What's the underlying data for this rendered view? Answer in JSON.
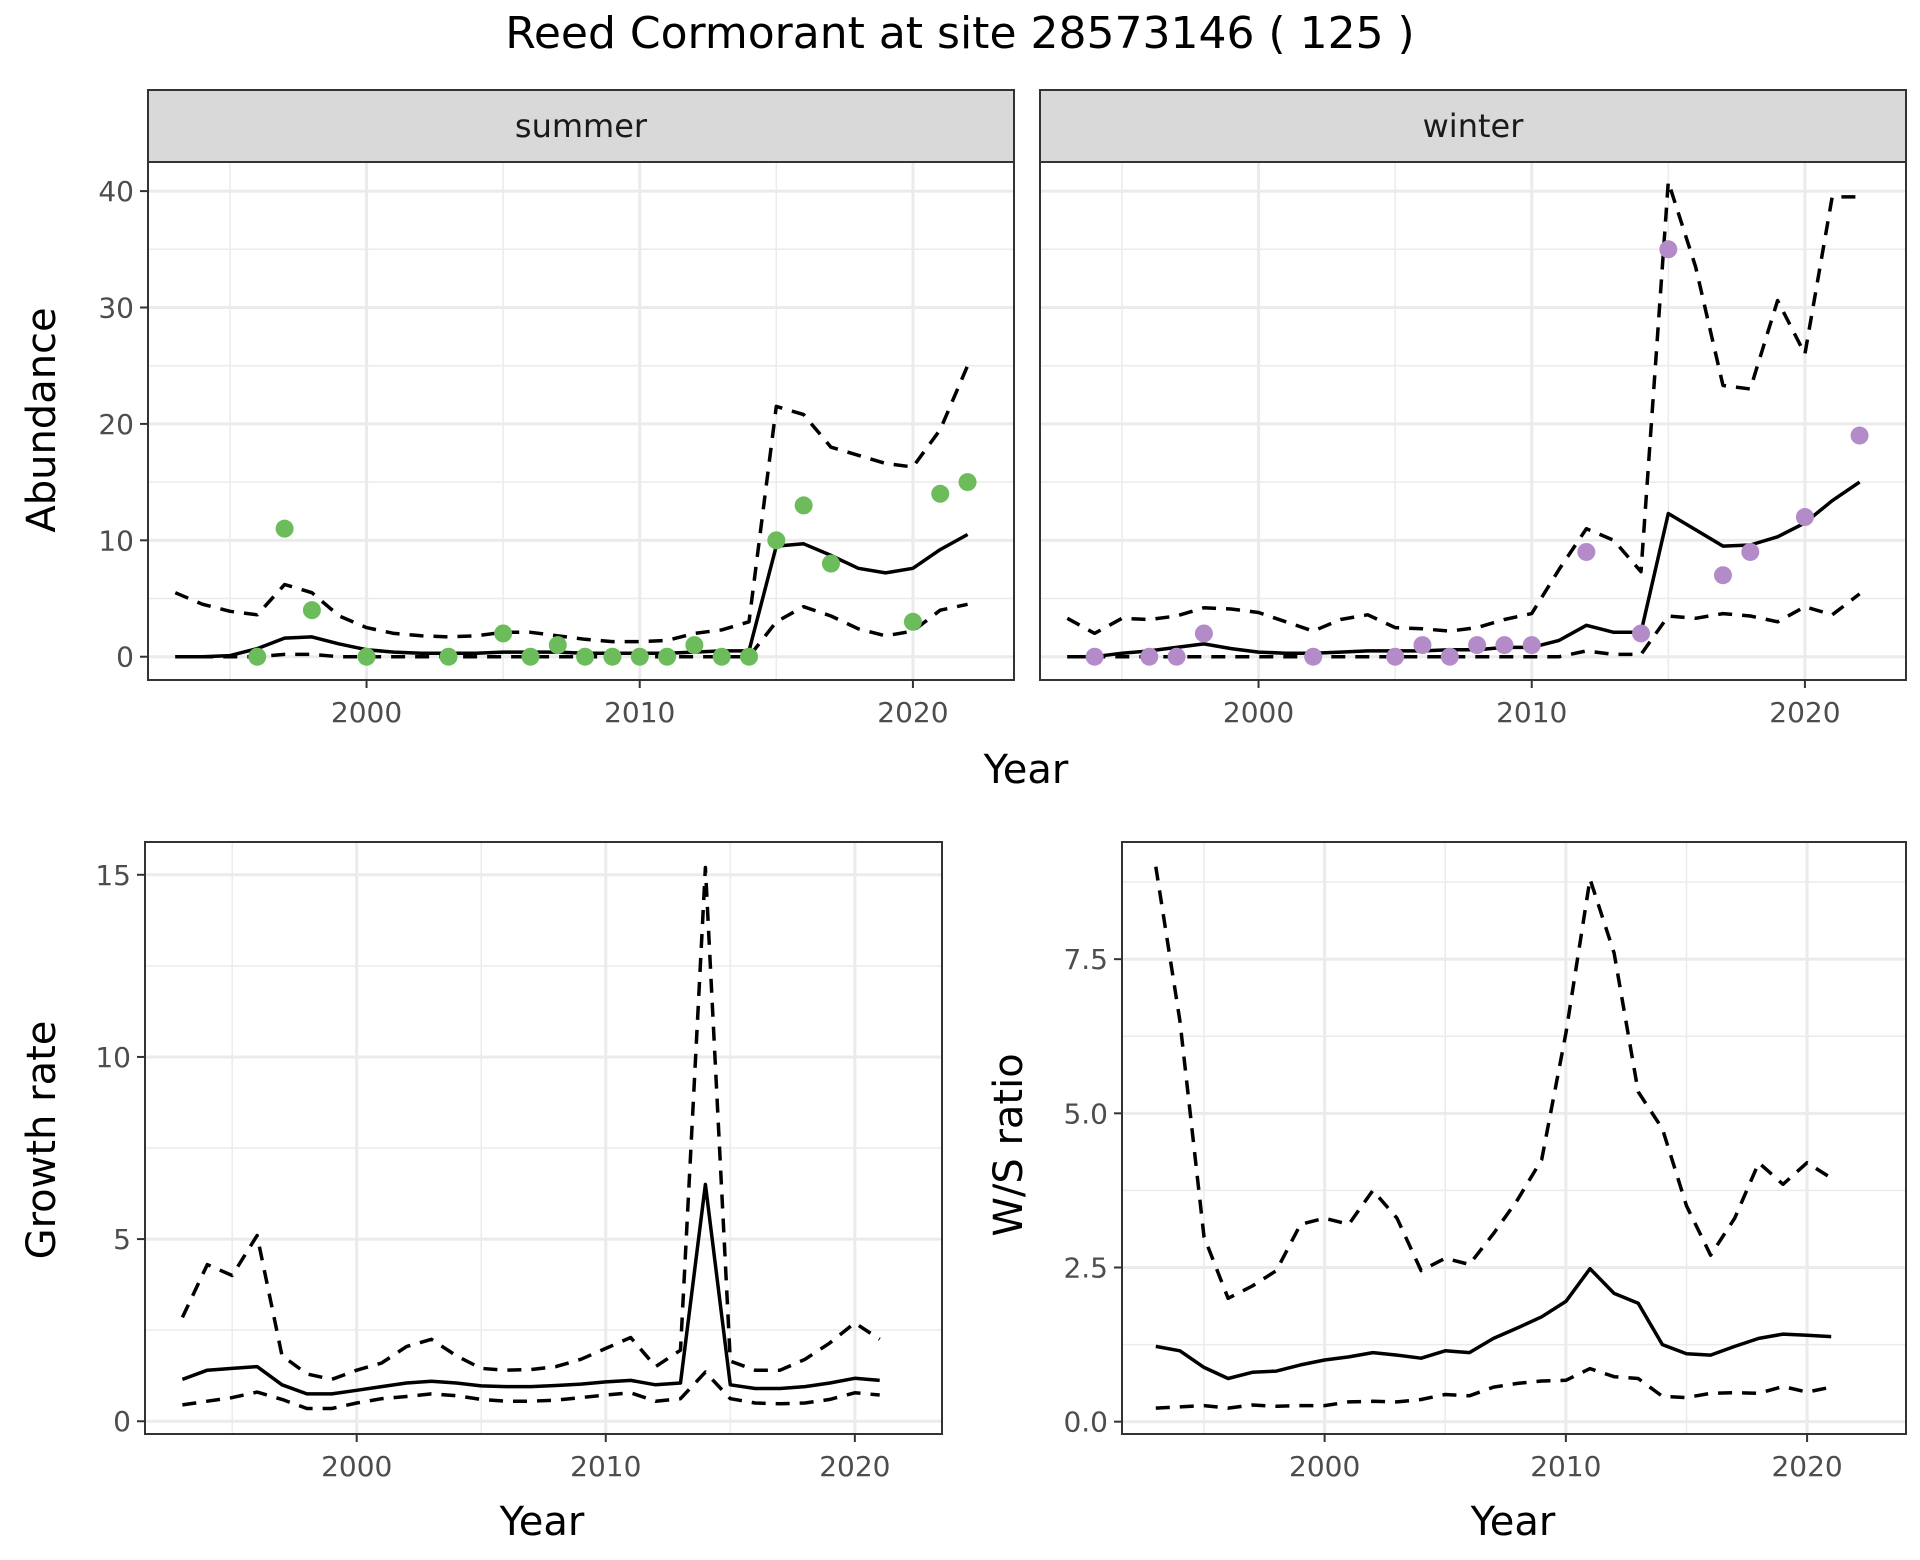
{
  "title": "Reed Cormorant at site 28573146 ( 125 )",
  "colors": {
    "summer_points": "#6cbc5c",
    "winter_points": "#b48bc9"
  },
  "chart_data": [
    {
      "id": "abundance",
      "type": "line",
      "facets": [
        "summer",
        "winter"
      ],
      "xlabel": "Year",
      "ylabel": "Abundance",
      "xlim": [
        1992,
        2023.7
      ],
      "ylim": [
        -2,
        42.5
      ],
      "xticks": [
        2000,
        2010,
        2020
      ],
      "yticks": [
        0,
        10,
        20,
        30,
        40
      ],
      "grid": true,
      "panels": [
        {
          "facet": "summer",
          "estimate": {
            "x": [
              1993,
              1994,
              1995,
              1996,
              1997,
              1998,
              1999,
              2000,
              2001,
              2002,
              2003,
              2004,
              2005,
              2006,
              2007,
              2008,
              2009,
              2010,
              2011,
              2012,
              2013,
              2014,
              2015,
              2016,
              2017,
              2018,
              2019,
              2020,
              2021,
              2022
            ],
            "y": [
              0,
              0,
              0.1,
              0.7,
              1.6,
              1.7,
              1.1,
              0.6,
              0.4,
              0.3,
              0.3,
              0.3,
              0.4,
              0.4,
              0.4,
              0.3,
              0.3,
              0.3,
              0.3,
              0.4,
              0.5,
              0.5,
              9.5,
              9.7,
              8.7,
              7.6,
              7.2,
              7.6,
              9.2,
              10.5
            ]
          },
          "lower": {
            "x": [
              1993,
              1994,
              1995,
              1996,
              1997,
              1998,
              1999,
              2000,
              2001,
              2002,
              2003,
              2004,
              2005,
              2006,
              2007,
              2008,
              2009,
              2010,
              2011,
              2012,
              2013,
              2014,
              2015,
              2016,
              2017,
              2018,
              2019,
              2020,
              2021,
              2022
            ],
            "y": [
              0,
              0,
              0,
              0,
              0.2,
              0.2,
              0,
              0,
              0,
              0,
              0,
              0,
              0,
              0,
              0,
              0,
              0,
              0,
              0,
              0,
              0,
              0,
              3,
              4.3,
              3.5,
              2.4,
              1.8,
              2.2,
              4,
              4.5
            ]
          },
          "upper": {
            "x": [
              1993,
              1994,
              1995,
              1996,
              1997,
              1998,
              1999,
              2000,
              2001,
              2002,
              2003,
              2004,
              2005,
              2006,
              2007,
              2008,
              2009,
              2010,
              2011,
              2012,
              2013,
              2014,
              2015,
              2016,
              2017,
              2018,
              2019,
              2020,
              2021,
              2022
            ],
            "y": [
              5.5,
              4.5,
              3.9,
              3.6,
              6.2,
              5.5,
              3.5,
              2.5,
              2,
              1.8,
              1.7,
              1.8,
              2.1,
              2.1,
              1.8,
              1.5,
              1.3,
              1.3,
              1.4,
              2,
              2.3,
              3,
              21.5,
              20.8,
              18,
              17.3,
              16.6,
              16.3,
              19.5,
              25
            ]
          },
          "observed": {
            "x": [
              1996,
              1997,
              1998,
              2000,
              2003,
              2005,
              2006,
              2007,
              2008,
              2009,
              2010,
              2011,
              2012,
              2013,
              2014,
              2015,
              2016,
              2017,
              2020,
              2021,
              2022
            ],
            "y": [
              0,
              11,
              4,
              0,
              0,
              2,
              0,
              1,
              0,
              0,
              0,
              0,
              1,
              0,
              0,
              10,
              13,
              8,
              3,
              14,
              15
            ]
          }
        },
        {
          "facet": "winter",
          "estimate": {
            "x": [
              1993,
              1994,
              1995,
              1996,
              1997,
              1998,
              1999,
              2000,
              2001,
              2002,
              2003,
              2004,
              2005,
              2006,
              2007,
              2008,
              2009,
              2010,
              2011,
              2012,
              2013,
              2014,
              2015,
              2016,
              2017,
              2018,
              2019,
              2020,
              2021,
              2022
            ],
            "y": [
              0,
              0,
              0.3,
              0.5,
              0.8,
              1.1,
              0.7,
              0.4,
              0.3,
              0.3,
              0.4,
              0.5,
              0.5,
              0.5,
              0.6,
              0.6,
              0.8,
              0.8,
              1.4,
              2.7,
              2.1,
              2.1,
              12.3,
              10.9,
              9.5,
              9.6,
              10.3,
              11.5,
              13.4,
              15
            ]
          },
          "lower": {
            "x": [
              1993,
              1994,
              1995,
              1996,
              1997,
              1998,
              1999,
              2000,
              2001,
              2002,
              2003,
              2004,
              2005,
              2006,
              2007,
              2008,
              2009,
              2010,
              2011,
              2012,
              2013,
              2014,
              2015,
              2016,
              2017,
              2018,
              2019,
              2020,
              2021,
              2022
            ],
            "y": [
              0,
              0,
              0,
              0,
              0,
              0,
              0,
              0,
              0,
              0,
              0,
              0,
              0,
              0,
              0,
              0,
              0,
              0,
              0,
              0.5,
              0.2,
              0.2,
              3.5,
              3.3,
              3.7,
              3.5,
              3,
              4.3,
              3.6,
              5.4
            ]
          },
          "upper": {
            "x": [
              1993,
              1994,
              1995,
              1996,
              1997,
              1998,
              1999,
              2000,
              2001,
              2002,
              2003,
              2004,
              2005,
              2006,
              2007,
              2008,
              2009,
              2010,
              2011,
              2012,
              2013,
              2014,
              2015,
              2016,
              2017,
              2018,
              2019,
              2020,
              2021,
              2022
            ],
            "y": [
              3.3,
              2,
              3.3,
              3.2,
              3.5,
              4.2,
              4.1,
              3.8,
              3,
              2.2,
              3.2,
              3.6,
              2.5,
              2.4,
              2.2,
              2.5,
              3.2,
              3.7,
              7.5,
              11,
              10,
              7.3,
              40.8,
              33.5,
              23.3,
              23,
              30.6,
              26,
              39.5,
              39.5
            ]
          },
          "observed": {
            "x": [
              1994,
              1996,
              1997,
              1998,
              2002,
              2005,
              2006,
              2007,
              2008,
              2009,
              2010,
              2012,
              2014,
              2015,
              2017,
              2018,
              2020,
              2022
            ],
            "y": [
              0,
              0,
              0,
              2,
              0,
              0,
              1,
              0,
              1,
              1,
              1,
              9,
              2,
              35,
              7,
              9,
              12,
              19
            ]
          }
        }
      ]
    },
    {
      "id": "growth",
      "type": "line",
      "xlabel": "Year",
      "ylabel": "Growth rate",
      "xlim": [
        1991.5,
        2023.5
      ],
      "ylim": [
        -0.35,
        15.9
      ],
      "xticks": [
        2000,
        2010,
        2020
      ],
      "yticks": [
        0,
        5,
        10,
        15
      ],
      "grid": true,
      "estimate": {
        "x": [
          1993,
          1994,
          1995,
          1996,
          1997,
          1998,
          1999,
          2000,
          2001,
          2002,
          2003,
          2004,
          2005,
          2006,
          2007,
          2008,
          2009,
          2010,
          2011,
          2012,
          2013,
          2014,
          2015,
          2016,
          2017,
          2018,
          2019,
          2020,
          2021
        ],
        "y": [
          1.15,
          1.4,
          1.45,
          1.5,
          1.0,
          0.75,
          0.75,
          0.85,
          0.95,
          1.05,
          1.1,
          1.05,
          0.97,
          0.95,
          0.95,
          0.98,
          1.02,
          1.08,
          1.12,
          1.0,
          1.05,
          6.5,
          1.0,
          0.9,
          0.9,
          0.95,
          1.05,
          1.18,
          1.12
        ]
      },
      "lower": {
        "x": [
          1993,
          1994,
          1995,
          1996,
          1997,
          1998,
          1999,
          2000,
          2001,
          2002,
          2003,
          2004,
          2005,
          2006,
          2007,
          2008,
          2009,
          2010,
          2011,
          2012,
          2013,
          2014,
          2015,
          2016,
          2017,
          2018,
          2019,
          2020,
          2021
        ],
        "y": [
          0.45,
          0.55,
          0.65,
          0.8,
          0.6,
          0.35,
          0.35,
          0.5,
          0.62,
          0.68,
          0.75,
          0.7,
          0.6,
          0.55,
          0.55,
          0.58,
          0.65,
          0.72,
          0.78,
          0.55,
          0.62,
          1.35,
          0.62,
          0.5,
          0.48,
          0.5,
          0.6,
          0.78,
          0.72
        ]
      },
      "upper": {
        "x": [
          1993,
          1994,
          1995,
          1996,
          1997,
          1998,
          1999,
          2000,
          2001,
          2002,
          2003,
          2004,
          2005,
          2006,
          2007,
          2008,
          2009,
          2010,
          2011,
          2012,
          2013,
          2014,
          2015,
          2016,
          2017,
          2018,
          2019,
          2020,
          2021
        ],
        "y": [
          2.85,
          4.3,
          4.0,
          5.1,
          1.8,
          1.3,
          1.15,
          1.4,
          1.6,
          2.05,
          2.25,
          1.8,
          1.45,
          1.4,
          1.42,
          1.5,
          1.7,
          2.0,
          2.3,
          1.5,
          1.95,
          15.2,
          1.65,
          1.4,
          1.4,
          1.7,
          2.15,
          2.7,
          2.25
        ]
      }
    },
    {
      "id": "ws_ratio",
      "type": "line",
      "xlabel": "Year",
      "ylabel": "W/S ratio",
      "xlim": [
        1991.6,
        2024.1
      ],
      "ylim": [
        -0.2,
        9.4
      ],
      "xticks": [
        2000,
        2010,
        2020
      ],
      "yticks": [
        0.0,
        2.5,
        5.0,
        7.5
      ],
      "ytick_labels": [
        "0.0",
        "2.5",
        "5.0",
        "7.5"
      ],
      "grid": true,
      "estimate": {
        "x": [
          1993,
          1994,
          1995,
          1996,
          1997,
          1998,
          1999,
          2000,
          2001,
          2002,
          2003,
          2004,
          2005,
          2006,
          2007,
          2008,
          2009,
          2010,
          2011,
          2012,
          2013,
          2014,
          2015,
          2016,
          2017,
          2018,
          2019,
          2020,
          2021
        ],
        "y": [
          1.22,
          1.15,
          0.88,
          0.7,
          0.8,
          0.82,
          0.92,
          1.0,
          1.05,
          1.12,
          1.08,
          1.03,
          1.15,
          1.12,
          1.35,
          1.52,
          1.7,
          1.95,
          2.48,
          2.08,
          1.92,
          1.25,
          1.1,
          1.08,
          1.22,
          1.35,
          1.42,
          1.4,
          1.38
        ]
      },
      "lower": {
        "x": [
          1993,
          1994,
          1995,
          1996,
          1997,
          1998,
          1999,
          2000,
          2001,
          2002,
          2003,
          2004,
          2005,
          2006,
          2007,
          2008,
          2009,
          2010,
          2011,
          2012,
          2013,
          2014,
          2015,
          2016,
          2017,
          2018,
          2019,
          2020,
          2021
        ],
        "y": [
          0.22,
          0.24,
          0.26,
          0.22,
          0.27,
          0.25,
          0.26,
          0.26,
          0.32,
          0.33,
          0.32,
          0.36,
          0.44,
          0.42,
          0.56,
          0.62,
          0.66,
          0.67,
          0.86,
          0.73,
          0.7,
          0.41,
          0.39,
          0.46,
          0.47,
          0.46,
          0.57,
          0.48,
          0.56
        ]
      },
      "upper": {
        "x": [
          1993,
          1994,
          1995,
          1996,
          1997,
          1998,
          1999,
          2000,
          2001,
          2002,
          2003,
          2004,
          2005,
          2006,
          2007,
          2008,
          2009,
          2010,
          2011,
          2012,
          2013,
          2014,
          2015,
          2016,
          2017,
          2018,
          2019,
          2020,
          2021
        ],
        "y": [
          9.0,
          6.5,
          3.0,
          2.0,
          2.2,
          2.45,
          3.2,
          3.3,
          3.2,
          3.75,
          3.3,
          2.45,
          2.65,
          2.55,
          3.05,
          3.6,
          4.25,
          6.3,
          8.8,
          7.6,
          5.35,
          4.75,
          3.5,
          2.7,
          3.3,
          4.2,
          3.85,
          4.2,
          3.95
        ]
      }
    }
  ]
}
